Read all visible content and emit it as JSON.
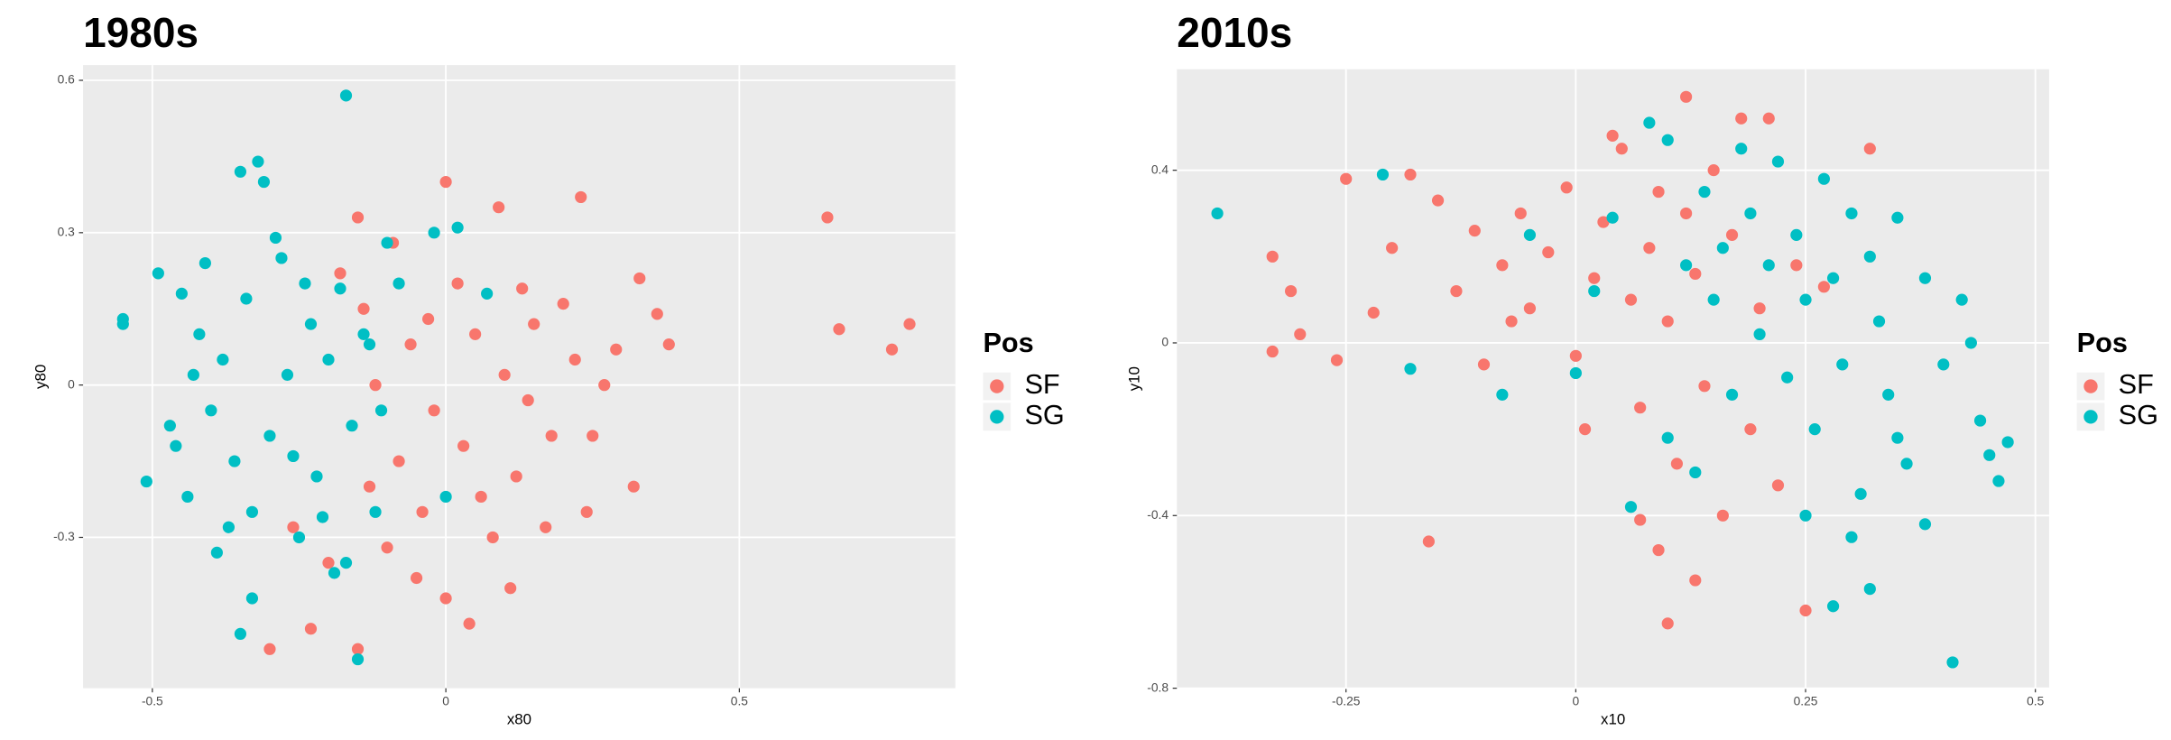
{
  "chart_data": [
    {
      "type": "scatter",
      "title": "1980s",
      "x_label": "x80",
      "y_label": "y80",
      "legend_title": "Pos",
      "xlim": [
        -0.618,
        0.868
      ],
      "ylim": [
        -0.597,
        0.63
      ],
      "xticks": [
        -0.5,
        0.0,
        0.5
      ],
      "yticks": [
        -0.3,
        0.0,
        0.3,
        0.6
      ],
      "grid": true,
      "series": [
        {
          "name": "SF",
          "color": "#F8766D",
          "x": [
            0.65,
            0.67,
            0.76,
            0.79,
            0.0,
            0.09,
            0.23,
            -0.15,
            -0.3,
            -0.23,
            0.04,
            0.38,
            0.36,
            0.33,
            0.32,
            0.24,
            0.27,
            0.22,
            0.18,
            0.15,
            0.12,
            0.1,
            0.08,
            0.05,
            0.03,
            0.02,
            -0.02,
            -0.04,
            -0.06,
            -0.08,
            -0.1,
            -0.12,
            -0.13,
            -0.14,
            -0.05,
            0.0,
            0.06,
            0.14,
            0.2,
            0.25,
            0.17,
            -0.18,
            -0.09,
            -0.15,
            0.29,
            0.13,
            -0.2,
            -0.26,
            0.11,
            -0.03
          ],
          "values": [
            0.33,
            0.11,
            0.07,
            0.12,
            0.4,
            0.35,
            0.37,
            -0.52,
            -0.52,
            -0.48,
            -0.47,
            0.08,
            0.14,
            0.21,
            -0.2,
            -0.25,
            0.0,
            0.05,
            -0.1,
            0.12,
            -0.18,
            0.02,
            -0.3,
            0.1,
            -0.12,
            0.2,
            -0.05,
            -0.25,
            0.08,
            -0.15,
            -0.32,
            0.0,
            -0.2,
            0.15,
            -0.38,
            -0.42,
            -0.22,
            -0.03,
            0.16,
            -0.1,
            -0.28,
            0.22,
            0.28,
            0.33,
            0.07,
            0.19,
            -0.35,
            -0.28,
            -0.4,
            0.13
          ]
        },
        {
          "name": "SG",
          "color": "#00BFC4",
          "x": [
            -0.17,
            -0.32,
            -0.35,
            -0.31,
            -0.55,
            -0.55,
            -0.51,
            -0.15,
            -0.35,
            -0.49,
            -0.45,
            -0.42,
            -0.4,
            -0.38,
            -0.36,
            -0.34,
            -0.33,
            -0.3,
            -0.28,
            -0.27,
            -0.25,
            -0.23,
            -0.22,
            -0.2,
            -0.19,
            -0.18,
            -0.16,
            -0.14,
            -0.12,
            -0.1,
            -0.08,
            0.02,
            -0.02,
            0.07,
            -0.47,
            -0.44,
            -0.41,
            -0.39,
            -0.37,
            -0.33,
            -0.29,
            -0.26,
            -0.24,
            -0.21,
            -0.17,
            -0.13,
            -0.11,
            -0.46,
            -0.43,
            0.0
          ],
          "values": [
            0.57,
            0.44,
            0.42,
            0.4,
            0.13,
            0.12,
            -0.19,
            -0.54,
            -0.49,
            0.22,
            0.18,
            0.1,
            -0.05,
            0.05,
            -0.15,
            0.17,
            -0.25,
            -0.1,
            0.25,
            0.02,
            -0.3,
            0.12,
            -0.18,
            0.05,
            -0.37,
            0.19,
            -0.08,
            0.1,
            -0.25,
            0.28,
            0.2,
            0.31,
            0.3,
            0.18,
            -0.08,
            -0.22,
            0.24,
            -0.33,
            -0.28,
            -0.42,
            0.29,
            -0.14,
            0.2,
            -0.26,
            -0.35,
            0.08,
            -0.05,
            -0.12,
            0.02,
            -0.22
          ]
        }
      ]
    },
    {
      "type": "scatter",
      "title": "2010s",
      "x_label": "x10",
      "y_label": "y10",
      "legend_title": "Pos",
      "xlim": [
        -0.434,
        0.515
      ],
      "ylim": [
        -0.8,
        0.634
      ],
      "xticks": [
        -0.25,
        0.0,
        0.25,
        0.5
      ],
      "yticks": [
        -0.8,
        -0.4,
        0.0,
        0.4
      ],
      "grid": true,
      "series": [
        {
          "name": "SF",
          "color": "#F8766D",
          "x": [
            -0.33,
            -0.31,
            -0.3,
            -0.33,
            -0.25,
            -0.16,
            -0.26,
            0.12,
            0.25,
            0.1,
            0.32,
            0.18,
            0.21,
            -0.22,
            -0.2,
            -0.18,
            -0.15,
            -0.13,
            -0.11,
            -0.1,
            -0.08,
            -0.06,
            -0.05,
            -0.03,
            -0.01,
            0.0,
            0.02,
            0.03,
            0.05,
            0.06,
            0.07,
            0.08,
            0.09,
            0.1,
            0.11,
            0.12,
            0.13,
            0.14,
            0.15,
            0.16,
            0.17,
            0.19,
            0.2,
            0.22,
            0.24,
            0.27,
            0.07,
            0.09,
            0.13,
            0.04,
            -0.07,
            0.01
          ],
          "values": [
            0.2,
            0.12,
            0.02,
            -0.02,
            0.38,
            -0.46,
            -0.04,
            0.57,
            -0.62,
            -0.65,
            0.45,
            0.52,
            0.52,
            0.07,
            0.22,
            0.39,
            0.33,
            0.12,
            0.26,
            -0.05,
            0.18,
            0.3,
            0.08,
            0.21,
            0.36,
            -0.03,
            0.15,
            0.28,
            0.45,
            0.1,
            -0.15,
            0.22,
            0.35,
            0.05,
            -0.28,
            0.3,
            0.16,
            -0.1,
            0.4,
            -0.4,
            0.25,
            -0.2,
            0.08,
            -0.33,
            0.18,
            0.13,
            -0.41,
            -0.48,
            -0.55,
            0.48,
            0.05,
            -0.2
          ]
        },
        {
          "name": "SG",
          "color": "#00BFC4",
          "x": [
            -0.39,
            -0.21,
            -0.18,
            -0.08,
            0.41,
            0.28,
            0.32,
            0.47,
            0.46,
            0.45,
            0.44,
            0.43,
            0.42,
            0.4,
            0.38,
            0.36,
            0.35,
            0.34,
            0.33,
            0.32,
            0.31,
            0.3,
            0.29,
            0.28,
            0.27,
            0.26,
            0.25,
            0.24,
            0.23,
            0.22,
            0.21,
            0.2,
            0.19,
            0.18,
            0.17,
            0.16,
            0.15,
            0.14,
            0.13,
            0.12,
            0.1,
            0.08,
            0.06,
            0.04,
            0.02,
            0.0,
            0.25,
            0.3,
            0.38,
            0.35,
            -0.05,
            0.1
          ],
          "values": [
            0.3,
            0.39,
            -0.06,
            -0.12,
            -0.74,
            -0.61,
            -0.57,
            -0.23,
            -0.32,
            -0.26,
            -0.18,
            0.0,
            0.1,
            -0.05,
            0.15,
            -0.28,
            0.29,
            -0.12,
            0.05,
            0.2,
            -0.35,
            0.3,
            -0.05,
            0.15,
            0.38,
            -0.2,
            0.1,
            0.25,
            -0.08,
            0.42,
            0.18,
            0.02,
            0.3,
            0.45,
            -0.12,
            0.22,
            0.1,
            0.35,
            -0.3,
            0.18,
            0.47,
            0.51,
            -0.38,
            0.29,
            0.12,
            -0.07,
            -0.4,
            -0.45,
            -0.42,
            -0.22,
            0.25,
            -0.22
          ]
        }
      ]
    }
  ]
}
